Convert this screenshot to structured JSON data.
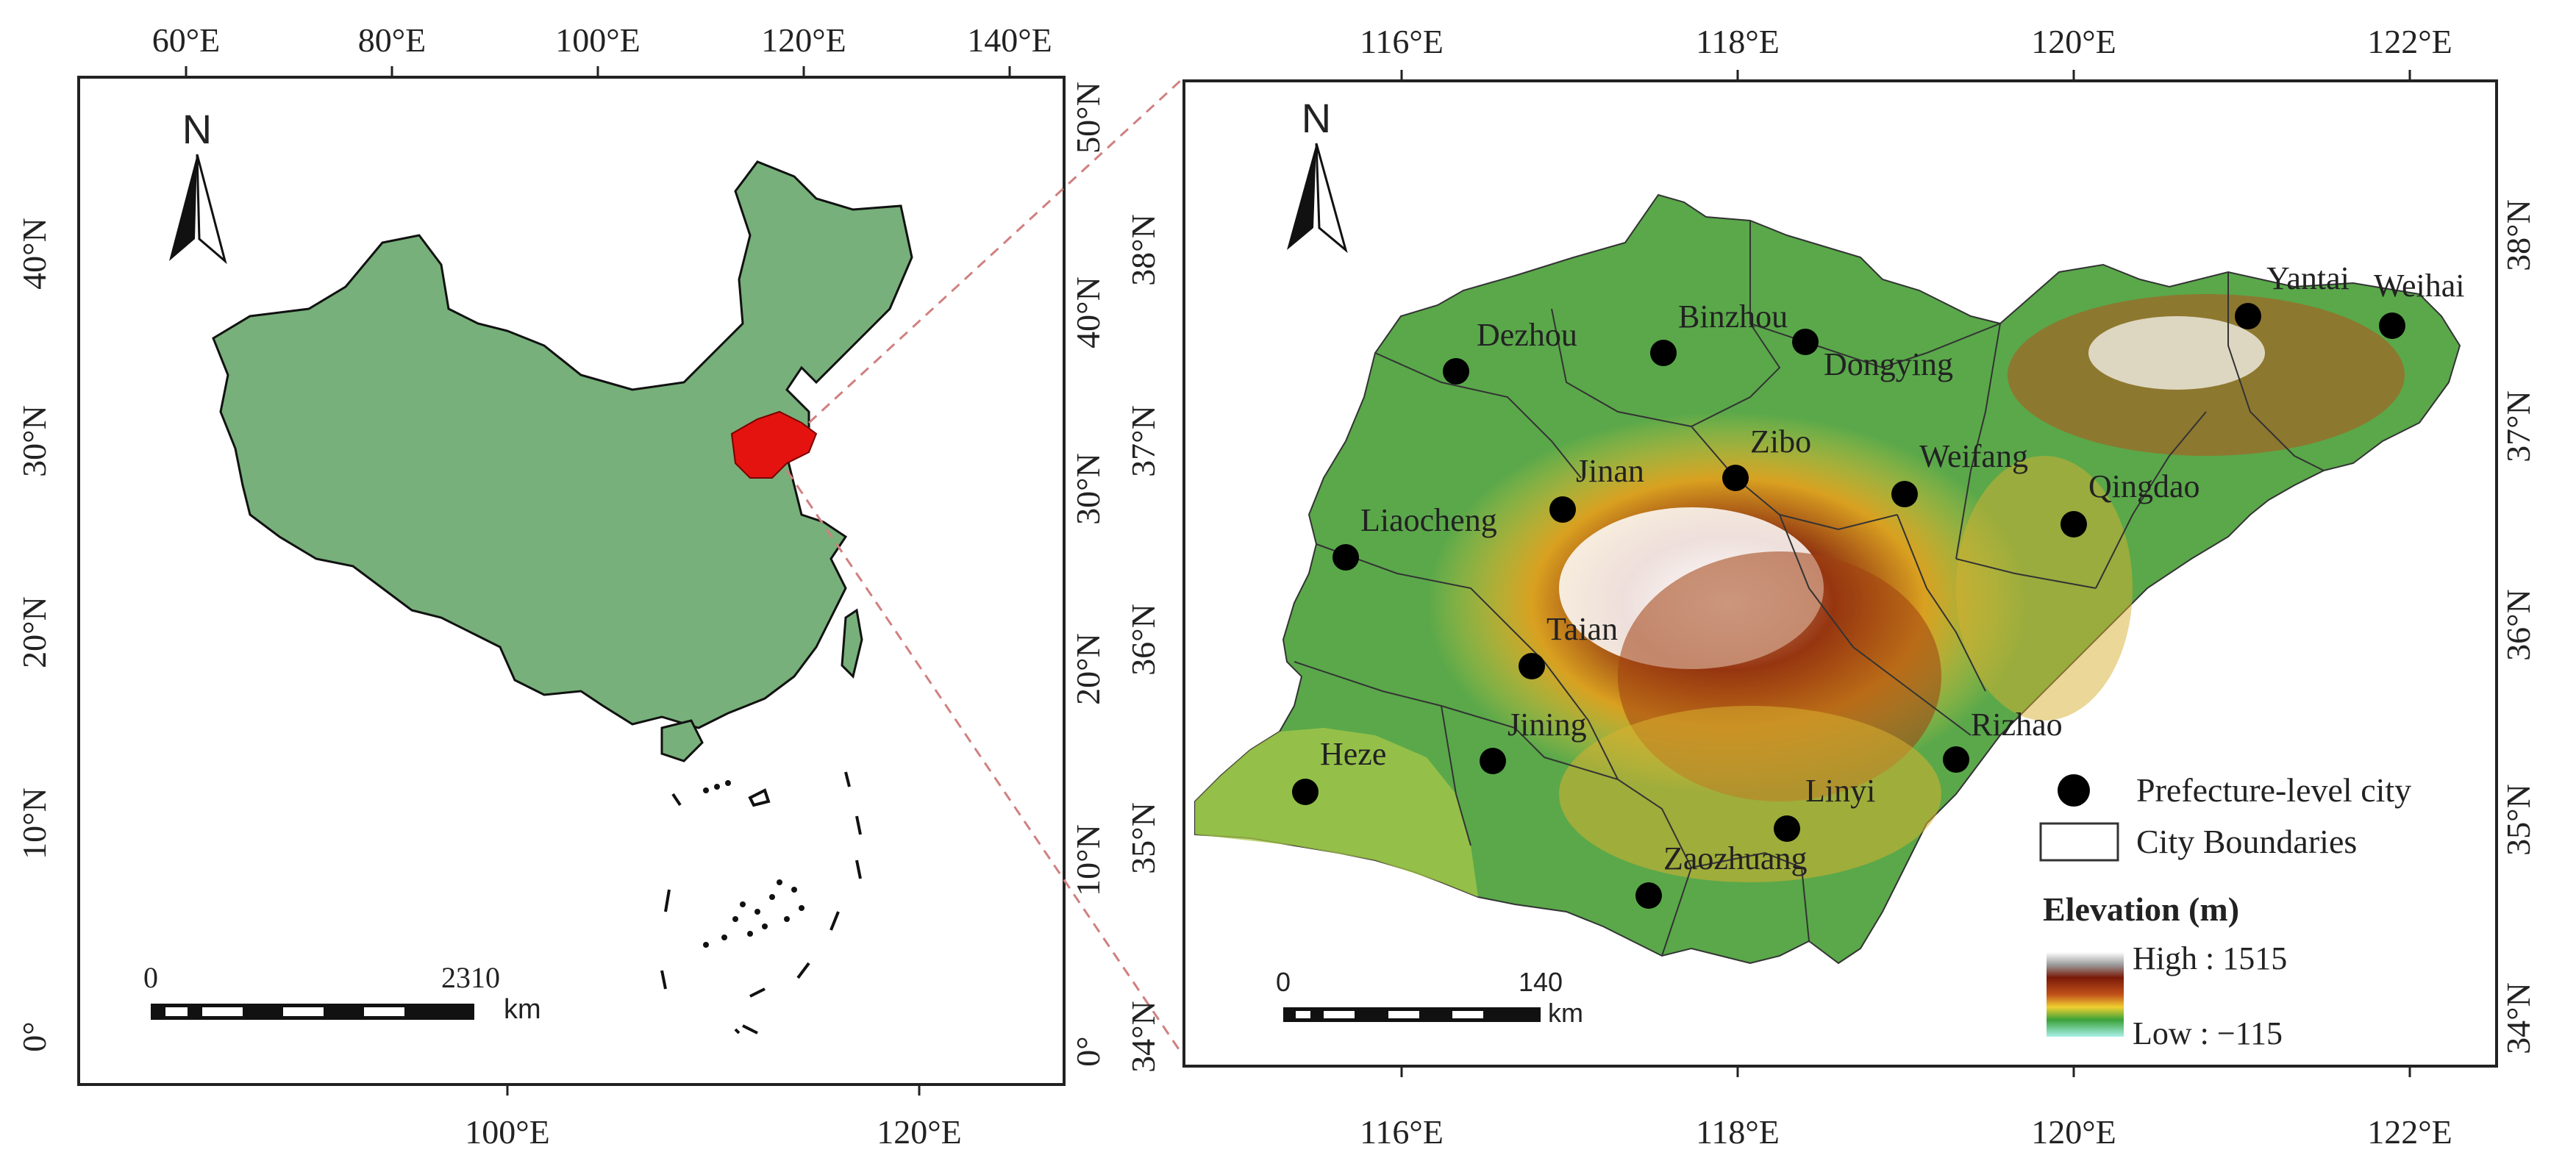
{
  "left_map": {
    "top_lon_ticks": [
      "60°E",
      "80°E",
      "100°E",
      "120°E",
      "140°E"
    ],
    "bottom_lon_ticks": [
      "100°E",
      "120°E"
    ],
    "left_lat_ticks": [
      "40°N",
      "30°N",
      "20°N",
      "10°N",
      "0°"
    ],
    "right_lat_ticks": [
      "50°N",
      "40°N",
      "30°N",
      "20°N",
      "10°N",
      "0°"
    ],
    "north_label": "N",
    "scale_zero": "0",
    "scale_max": "2310",
    "scale_unit": "km",
    "colors": {
      "land": "#77b07a",
      "highlight": "#e4130f"
    }
  },
  "right_map": {
    "top_lon_ticks": [
      "116°E",
      "118°E",
      "120°E",
      "122°E"
    ],
    "bottom_lon_ticks": [
      "116°E",
      "118°E",
      "120°E",
      "122°E"
    ],
    "left_lat_ticks": [
      "38°N",
      "37°N",
      "36°N",
      "35°N",
      "34°N"
    ],
    "right_lat_ticks": [
      "38°N",
      "37°N",
      "36°N",
      "35°N",
      "34°N"
    ],
    "north_label": "N",
    "scale_zero": "0",
    "scale_max": "140",
    "scale_unit": "km",
    "cities": [
      {
        "name": "Dezhou"
      },
      {
        "name": "Binzhou"
      },
      {
        "name": "Dongying"
      },
      {
        "name": "Yantai"
      },
      {
        "name": "Weihai"
      },
      {
        "name": "Zibo"
      },
      {
        "name": "Jinan"
      },
      {
        "name": "Weifang"
      },
      {
        "name": "Qingdao"
      },
      {
        "name": "Liaocheng"
      },
      {
        "name": "Taian"
      },
      {
        "name": "Jining"
      },
      {
        "name": "Heze"
      },
      {
        "name": "Rizhao"
      },
      {
        "name": "Linyi"
      },
      {
        "name": "Zaozhuang"
      }
    ],
    "legend": {
      "city_label": "Prefecture-level city",
      "boundary_label": "City Boundaries",
      "elevation_title": "Elevation (m)",
      "high_label": "High : 1515",
      "low_label": "Low : −115"
    }
  }
}
